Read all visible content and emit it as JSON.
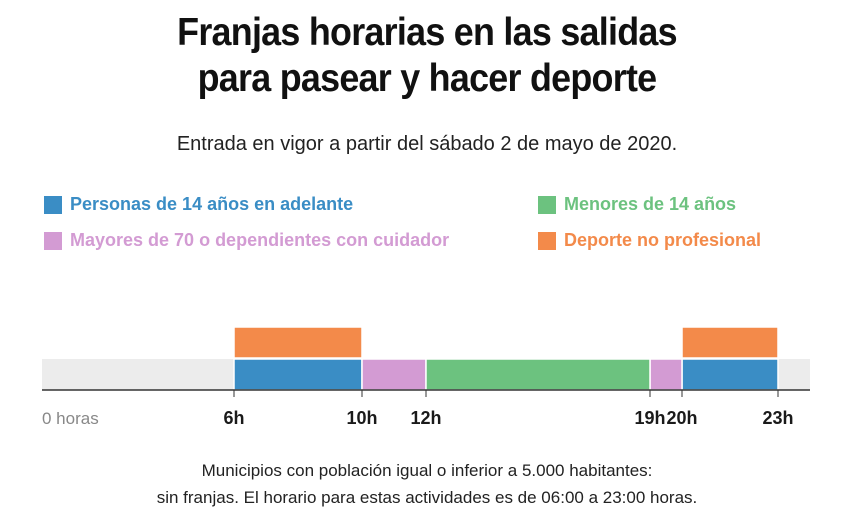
{
  "title_line1": "Franjas horarias en las salidas",
  "title_line2": "para pasear y hacer deporte",
  "subtitle": "Entrada en vigor a partir del sábado 2 de mayo de 2020.",
  "colors": {
    "adults": "#3a8dc5",
    "minors": "#6cc27f",
    "elderly": "#d39bd3",
    "sport": "#f38a4a",
    "track": "#ececec"
  },
  "legend": [
    {
      "label": "Personas de 14 años en adelante",
      "color": "#3a8dc5"
    },
    {
      "label": "Menores de 14 años",
      "color": "#6cc27f"
    },
    {
      "label": "Mayores de 70 o dependientes con cuidador",
      "color": "#d39bd3"
    },
    {
      "label": "Deporte no profesional",
      "color": "#f38a4a"
    }
  ],
  "chart_data": {
    "type": "bar",
    "orientation": "horizontal-timeline",
    "x_range": [
      0,
      24
    ],
    "x_unit": "horas",
    "tick_labels": [
      {
        "value": 0,
        "label": "0 horas"
      },
      {
        "value": 6,
        "label": "6h"
      },
      {
        "value": 10,
        "label": "10h"
      },
      {
        "value": 12,
        "label": "12h"
      },
      {
        "value": 19,
        "label": "19h"
      },
      {
        "value": 20,
        "label": "20h"
      },
      {
        "value": 23,
        "label": "23h"
      }
    ],
    "series": [
      {
        "name": "Personas de 14 años en adelante",
        "color": "#3a8dc5",
        "row": "main",
        "intervals": [
          [
            6,
            10
          ],
          [
            20,
            23
          ]
        ]
      },
      {
        "name": "Mayores de 70 o dependientes con cuidador",
        "color": "#d39bd3",
        "row": "main",
        "intervals": [
          [
            10,
            12
          ],
          [
            19,
            20
          ]
        ]
      },
      {
        "name": "Menores de 14 años",
        "color": "#6cc27f",
        "row": "main",
        "intervals": [
          [
            12,
            19
          ]
        ]
      },
      {
        "name": "Deporte no profesional",
        "color": "#f38a4a",
        "row": "top",
        "intervals": [
          [
            6,
            10
          ],
          [
            20,
            23
          ]
        ]
      }
    ]
  },
  "footnote_line1": "Municipios con población igual o inferior a 5.000 habitantes:",
  "footnote_line2": "sin franjas. El horario para estas actividades es de 06:00 a 23:00 horas."
}
